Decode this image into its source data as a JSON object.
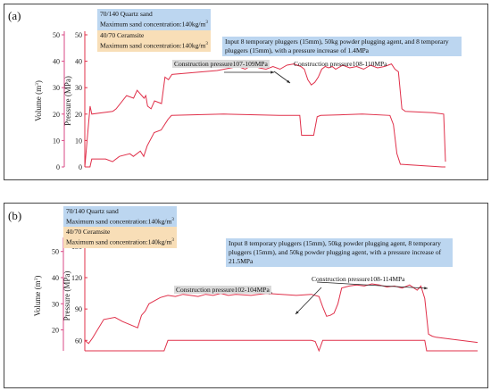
{
  "panels": [
    {
      "label": "(a)",
      "legend": {
        "quartz_name": "70/140 Quartz sand",
        "quartz_conc": "Maximum sand concentration:",
        "quartz_val": "140kg/m",
        "ceramsite_name": "40/70 Ceramsite",
        "ceramsite_conc": "Maximum sand concentration:",
        "ceramsite_val": "140kg/m",
        "unit_sup": "3"
      },
      "note": "Input 8 temporary pluggers (15mm), 50kg powder plugging agent, and 8 temporary pluggers (15mm), with a pressure increase of 1.4MPa",
      "annotations": [
        "Construction pressure107-109MPa",
        "Construction pressure108-110MPa"
      ]
    },
    {
      "label": "(b)",
      "legend": {
        "quartz_name": "70/140 Quartz sand",
        "quartz_conc": "Maximum sand concentration:",
        "quartz_val": "140kg/m",
        "ceramsite_name": "40/70 Ceramsite",
        "ceramsite_conc": "Maximum sand concentration:",
        "ceramsite_val": "140kg/m",
        "unit_sup": "3"
      },
      "note": "Input 8 temporary pluggers (15mm), 50kg powder plugging agent, 8 temporary pluggers (15mm), and 50kg powder plugging agent, with a pressure increase of 21.5MPa",
      "annotations": [
        "Construction pressure102-104MPa",
        "Construction pressure108-114MPa"
      ]
    }
  ],
  "chart_data": [
    {
      "type": "line",
      "panel": "(a)",
      "axes": [
        {
          "label": "Volume (m³)",
          "label_base": "Volume (m",
          "label_sup": "3",
          "label_end": ")",
          "ticks": [
            0,
            10,
            20,
            30,
            40,
            50
          ],
          "ylim": [
            0,
            50
          ]
        },
        {
          "label": "Pressure (MPa)",
          "ticks": [
            0,
            10,
            20,
            30,
            40,
            50
          ],
          "ylim": [
            0,
            50
          ]
        }
      ],
      "series": [
        {
          "color": "#e0304a",
          "x": [
            0,
            1.5,
            2,
            8,
            9,
            12,
            14,
            15,
            17,
            17.5,
            18,
            19,
            20,
            22,
            23,
            24,
            25,
            38,
            40,
            42,
            44,
            46,
            48,
            50,
            52,
            54,
            56,
            58,
            60,
            62,
            63,
            64,
            65,
            66,
            67,
            68,
            69,
            70,
            71,
            72,
            74,
            76,
            78,
            80,
            82,
            84,
            86,
            88,
            89,
            90,
            91,
            91.5,
            92,
            100,
            103,
            103.5
          ],
          "y": [
            0,
            23,
            20,
            21,
            22,
            27,
            26,
            29,
            26,
            27,
            23,
            22,
            25,
            24,
            34,
            33,
            35,
            36.5,
            37,
            37.5,
            38,
            37,
            38.5,
            37.5,
            37,
            38,
            37,
            38.5,
            39,
            38,
            37,
            33,
            31,
            32,
            34,
            37,
            38,
            37.5,
            38,
            37,
            38.5,
            37.5,
            38,
            37,
            38.5,
            37.5,
            38,
            39,
            37,
            36,
            22,
            21.5,
            21,
            20.5,
            20,
            2
          ]
        },
        {
          "color": "#e0304a",
          "x": [
            0,
            1.5,
            2,
            6,
            8,
            10,
            13,
            14,
            16,
            17,
            18,
            20,
            22,
            24,
            25,
            40,
            56,
            62,
            62.5,
            66,
            67,
            68,
            80,
            88,
            89,
            90,
            91,
            103,
            104
          ],
          "y": [
            0,
            0,
            3,
            3,
            2,
            4,
            5,
            4,
            6,
            4,
            8,
            13,
            14,
            18,
            19.5,
            20,
            19.5,
            19.5,
            12,
            12,
            19,
            19.5,
            20,
            19.5,
            16,
            5,
            1,
            0,
            0
          ]
        }
      ]
    },
    {
      "type": "line",
      "panel": "(b)",
      "axes": [
        {
          "label": "Volume (m³)",
          "label_base": "Volume (m",
          "label_sup": "3",
          "label_end": ")",
          "ticks": [
            20,
            30,
            40,
            50
          ],
          "ylim": [
            12,
            54
          ]
        },
        {
          "label": "Pressure (MPa)",
          "ticks": [
            60,
            90,
            120,
            150
          ],
          "ylim": [
            50,
            155
          ]
        }
      ],
      "series": [
        {
          "color": "#e0304a",
          "x": [
            0,
            1,
            2,
            5,
            8,
            10,
            14,
            15,
            16,
            17,
            18,
            20,
            22,
            24,
            26,
            28,
            30,
            32,
            34,
            36,
            38,
            40,
            44,
            48,
            52,
            56,
            60,
            62,
            63,
            64,
            65,
            66,
            67,
            68,
            70,
            72,
            74,
            76,
            78,
            80,
            82,
            84,
            86,
            88,
            89,
            90,
            91,
            92,
            93,
            104
          ],
          "y": [
            60,
            57,
            62,
            80,
            82,
            78,
            72,
            84,
            88,
            95,
            97,
            101,
            103,
            102,
            104,
            103,
            102,
            104,
            103,
            105,
            103,
            104,
            103,
            105,
            104,
            103,
            104,
            102,
            92,
            83,
            84,
            86,
            95,
            110,
            112,
            113,
            112,
            114,
            113,
            111,
            112,
            110,
            113,
            108,
            112,
            100,
            66,
            64,
            63,
            58
          ]
        },
        {
          "color": "#e0304a",
          "x": [
            0,
            20,
            21,
            22,
            30,
            50,
            60,
            61,
            62,
            63,
            70,
            80,
            90,
            90.5,
            91,
            104
          ],
          "y": [
            35,
            35,
            40,
            60,
            60,
            60,
            60,
            59,
            45,
            60,
            60,
            60,
            60,
            40,
            35,
            35
          ]
        }
      ]
    }
  ]
}
